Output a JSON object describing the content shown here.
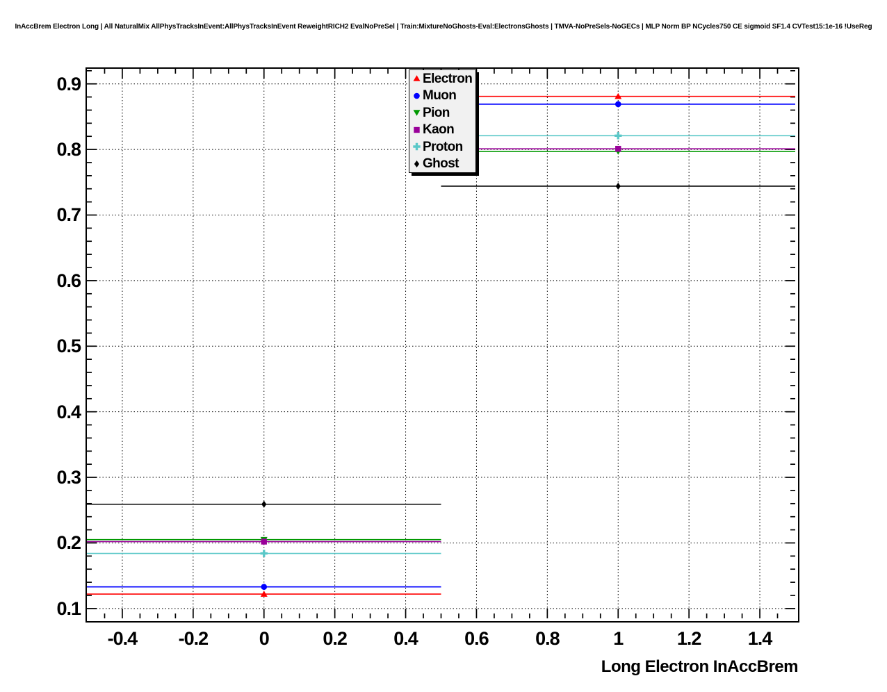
{
  "header": {
    "title": "InAccBrem Electron Long | All NaturalMix AllPhysTracksInEvent:AllPhysTracksInEvent ReweightRICH2 EvalNoPreSel | Train:MixtureNoGhosts-Eval:ElectronsGhosts | TMVA-NoPreSels-NoGECs | MLP Norm BP NCycles750 CE sigmoid SF1.4 CVTest15:1e-16 !UseReg"
  },
  "axes": {
    "x": {
      "title": "Long Electron InAccBrem",
      "min": -0.5,
      "max": 1.5,
      "major_tick_values": [
        -0.4,
        -0.2,
        0,
        0.2,
        0.4,
        0.6,
        0.8,
        1,
        1.2,
        1.4
      ],
      "tick_labels": [
        "-0.4",
        "-0.2",
        "0",
        "0.2",
        "0.4",
        "0.6",
        "0.8",
        "1",
        "1.2",
        "1.4"
      ],
      "minor_step": 0.05
    },
    "y": {
      "title": "",
      "min": 0.085,
      "max": 0.923,
      "major_tick_values": [
        0.1,
        0.2,
        0.3,
        0.4,
        0.5,
        0.6,
        0.7,
        0.8,
        0.9
      ],
      "tick_labels": [
        "0.1",
        "0.2",
        "0.3",
        "0.4",
        "0.5",
        "0.6",
        "0.7",
        "0.8",
        "0.9"
      ],
      "minor_step": 0.02
    }
  },
  "grid": {
    "shown": true,
    "style": "dotted",
    "color": "#000000"
  },
  "legend": {
    "entries": [
      {
        "label": "Electron"
      },
      {
        "label": "Muon"
      },
      {
        "label": "Pion"
      },
      {
        "label": "Kaon"
      },
      {
        "label": "Proton"
      },
      {
        "label": "Ghost"
      }
    ],
    "background": "#f1f1f1",
    "border_color": "#000000"
  },
  "chart_data": {
    "type": "line",
    "description": "Efficiency vs Long Electron InAccBrem; points at bin centers with horizontal bin-width bars",
    "x_bins": [
      {
        "center": 0,
        "low": -0.5,
        "high": 0.5
      },
      {
        "center": 1,
        "low": 0.5,
        "high": 1.5
      }
    ],
    "series": [
      {
        "name": "Electron",
        "color": "#ff0000",
        "marker": "triangle-up",
        "values": [
          0.122,
          0.881
        ]
      },
      {
        "name": "Muon",
        "color": "#0000ff",
        "marker": "circle",
        "values": [
          0.133,
          0.869
        ]
      },
      {
        "name": "Pion",
        "color": "#009900",
        "marker": "triangle-down",
        "values": [
          0.205,
          0.797
        ]
      },
      {
        "name": "Kaon",
        "color": "#990099",
        "marker": "square",
        "values": [
          0.202,
          0.801
        ]
      },
      {
        "name": "Proton",
        "color": "#5ac8c8",
        "marker": "cross",
        "values": [
          0.184,
          0.821
        ]
      },
      {
        "name": "Ghost",
        "color": "#000000",
        "marker": "diamond",
        "values": [
          0.259,
          0.744
        ]
      }
    ],
    "title": "",
    "xlabel": "Long Electron InAccBrem",
    "ylabel": "",
    "xlim": [
      -0.5,
      1.5
    ],
    "ylim": [
      0.085,
      0.923
    ],
    "grid": true,
    "legend_position": "top-center"
  }
}
